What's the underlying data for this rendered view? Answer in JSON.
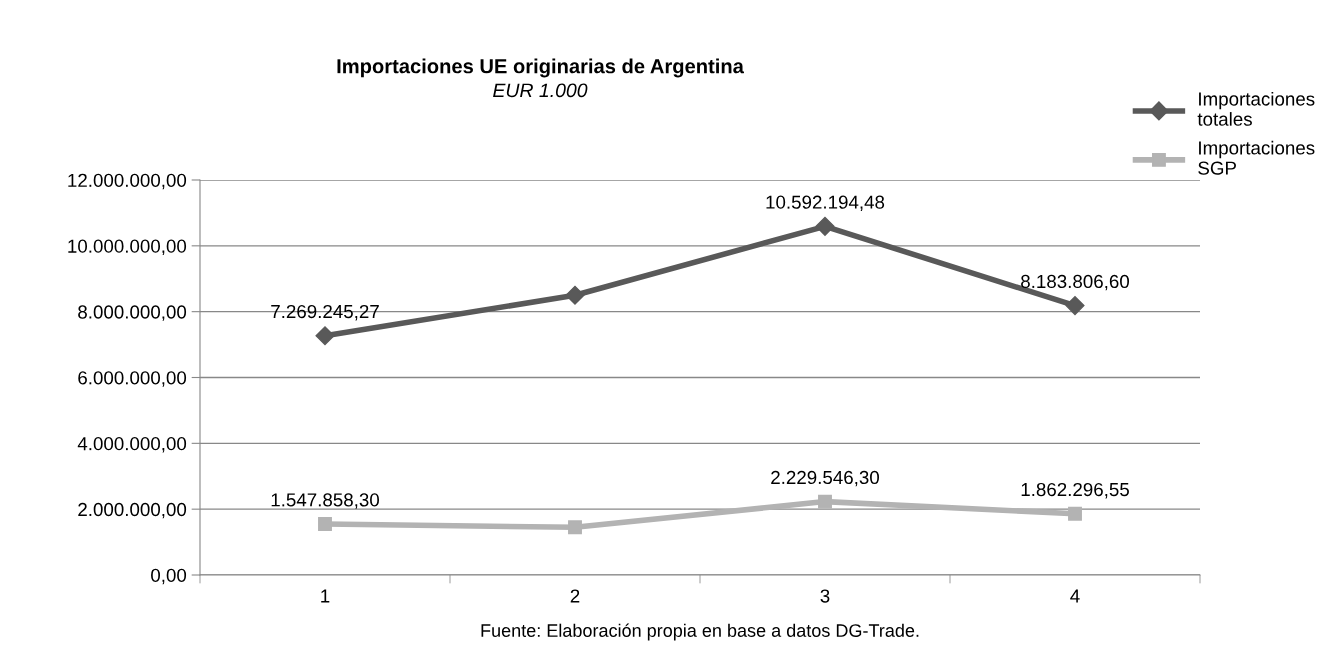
{
  "chart_data": {
    "type": "line",
    "title": "Importaciones UE originarias de Argentina",
    "subtitle": "EUR 1.000",
    "categories": [
      "1",
      "2",
      "3",
      "4"
    ],
    "series": [
      {
        "name": "Importaciones totales",
        "color": "#595959",
        "marker": "diamond",
        "values": [
          7269245.27,
          8500000,
          10592194.48,
          8183806.6
        ],
        "value_labels": [
          "7.269.245,27",
          null,
          "10.592.194,48",
          "8.183.806,60"
        ]
      },
      {
        "name": "Importaciones SGP",
        "color": "#b3b3b3",
        "marker": "square",
        "values": [
          1547858.3,
          1450000,
          2229546.3,
          1862296.55
        ],
        "value_labels": [
          "1.547.858,30",
          null,
          "2.229.546,30",
          "1.862.296,55"
        ]
      }
    ],
    "ylim": [
      0,
      12000000
    ],
    "yticks": [
      {
        "value": 0,
        "label": "0,00"
      },
      {
        "value": 2000000,
        "label": "2.000.000,00"
      },
      {
        "value": 4000000,
        "label": "4.000.000,00"
      },
      {
        "value": 6000000,
        "label": "6.000.000,00"
      },
      {
        "value": 8000000,
        "label": "8.000.000,00"
      },
      {
        "value": 10000000,
        "label": "10.000.000,00"
      },
      {
        "value": 12000000,
        "label": "12.000.000,00"
      }
    ],
    "grid": "y",
    "legend": "top right",
    "line_style": "solid",
    "annotations": [
      "Fuente: Elaboración propia en base a datos DG-Trade."
    ]
  }
}
